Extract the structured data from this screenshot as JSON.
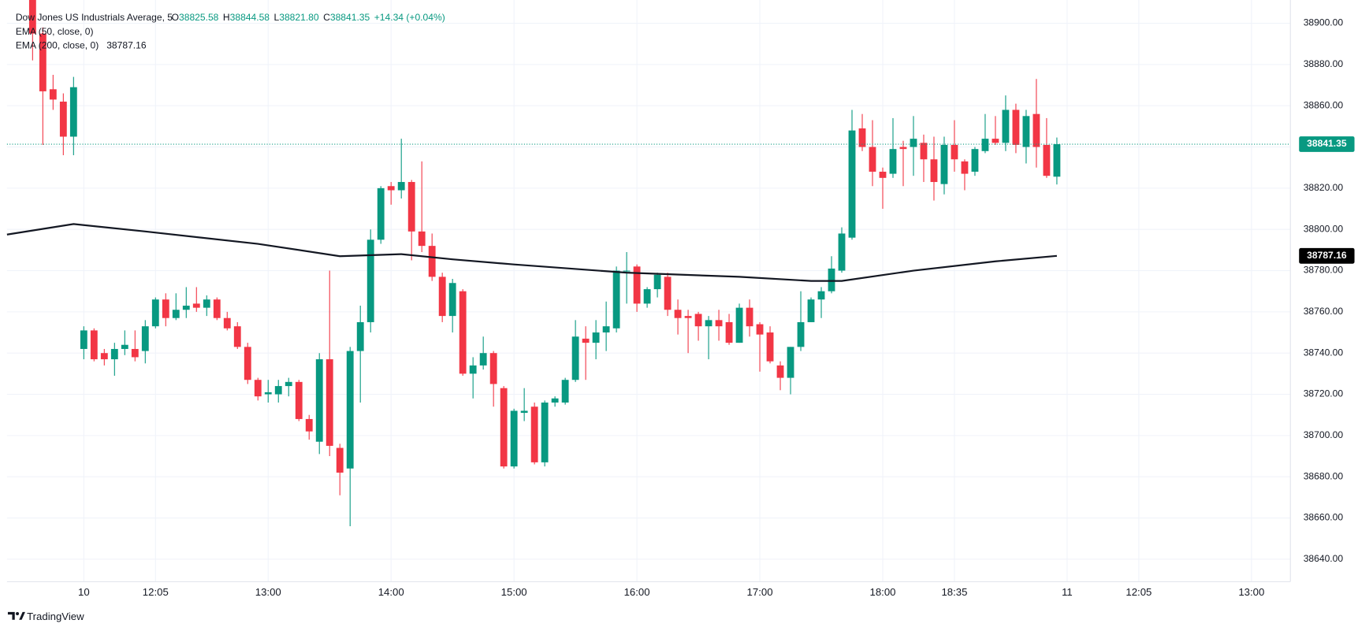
{
  "header": {
    "title": "Dow Jones US Industrials Average, 5",
    "ohlc": [
      {
        "key": "O",
        "text": "38825.58"
      },
      {
        "key": "H",
        "text": "38844.58"
      },
      {
        "key": "L",
        "text": "38821.80"
      },
      {
        "key": "C",
        "text": "38841.35"
      }
    ],
    "change": "+14.34 (+0.04%)",
    "indicators": [
      "EMA (50, close, 0)",
      "EMA (200, close, 0)"
    ]
  },
  "brand": "TradingView",
  "chart_data": {
    "type": "candlestick",
    "up_color": "#089981",
    "down_color": "#f23645",
    "open": [
      38912,
      38895,
      38868,
      38862,
      38845,
      38742,
      38751,
      38740,
      38737,
      38742,
      38742,
      38741,
      38753,
      38766,
      38757,
      38761,
      38764,
      38762,
      38766,
      38757,
      38753,
      38743,
      38727,
      38720,
      38720,
      38724,
      38726,
      38708,
      38697,
      38737,
      38694,
      38684,
      38741,
      38755,
      38795,
      38821,
      38819,
      38823,
      38799,
      38792,
      38777,
      38758,
      38770,
      38730,
      38734,
      38740,
      38723,
      38685,
      38711,
      38714,
      38687,
      38716,
      38716,
      38727,
      38747,
      38745,
      38750,
      38752,
      38780,
      38782,
      38764,
      38771,
      38777,
      38761,
      38758,
      38759,
      38753,
      38756,
      38755,
      38745,
      38762,
      38754,
      38750,
      38734,
      38728,
      38743,
      38755,
      38766,
      38770,
      38780,
      38796,
      38849,
      38840,
      38828,
      38827,
      38840,
      38840,
      38842,
      38834,
      38822,
      38841,
      38833,
      38828,
      38838,
      38844,
      38842,
      38858,
      38840,
      38856,
      38841,
      38825.58
    ],
    "high": [
      38915,
      38898,
      38875,
      38866,
      38874,
      38753,
      38752,
      38742,
      38745,
      38751,
      38751,
      38756,
      38767,
      38769,
      38769,
      38772,
      38772,
      38768,
      38767,
      38760,
      38755,
      38745,
      38728,
      38727,
      38727,
      38728,
      38727,
      38710,
      38740,
      38780,
      38696,
      38743,
      38763,
      38800,
      38821,
      38823,
      38844,
      38824,
      38833,
      38798,
      38779,
      38776,
      38771,
      38738,
      38748,
      38741,
      38724,
      38713,
      38723,
      38716,
      38717,
      38719,
      38728,
      38756,
      38753,
      38756,
      38765,
      38782,
      38789,
      38783,
      38772,
      38779,
      38779,
      38766,
      38761,
      38760,
      38758,
      38761,
      38759,
      38764,
      38766,
      38755,
      38753,
      38736,
      38743,
      38770,
      38767,
      38772,
      38787,
      38801,
      38858,
      38856,
      38853,
      38830,
      38854,
      38843,
      38855,
      38846,
      38845,
      38845,
      38853,
      38834,
      38840,
      38856,
      38855,
      38865,
      38861,
      38858,
      38873,
      38854,
      38844.58
    ],
    "low": [
      38882,
      38841,
      38858,
      38836,
      38836,
      38737,
      38736,
      38734,
      38729,
      38739,
      38736,
      38735,
      38752,
      38753,
      38756,
      38757,
      38760,
      38758,
      38756,
      38751,
      38742,
      38725,
      38717,
      38716,
      38716,
      38719,
      38707,
      38698,
      38691,
      38690,
      38671,
      38656,
      38716,
      38750,
      38793,
      38812,
      38815,
      38785,
      38789,
      38775,
      38755,
      38750,
      38729,
      38718,
      38732,
      38714,
      38684,
      38684,
      38707,
      38686,
      38685,
      38714,
      38715,
      38726,
      38727,
      38737,
      38741,
      38750,
      38764,
      38760,
      38762,
      38767,
      38758,
      38749,
      38740,
      38746,
      38737,
      38746,
      38744,
      38745,
      38748,
      38731,
      38735,
      38722,
      38720,
      38741,
      38755,
      38757,
      38769,
      38779,
      38795,
      38838,
      38821,
      38810,
      38825,
      38821,
      38826,
      38823,
      38814,
      38817,
      38828,
      38819,
      38826,
      38837,
      38841,
      38838,
      38837,
      38832,
      38830,
      38825,
      38821.8
    ],
    "close": [
      38895,
      38867,
      38863,
      38845,
      38869,
      38751,
      38737,
      38737,
      38742,
      38744,
      38738,
      38753,
      38766,
      38757,
      38761,
      38763,
      38762,
      38766,
      38757,
      38752,
      38743,
      38727,
      38719,
      38721,
      38724,
      38726,
      38708,
      38702,
      38737,
      38695,
      38682,
      38741,
      38755,
      38795,
      38820,
      38819,
      38823,
      38799,
      38792,
      38777,
      38758,
      38774,
      38730,
      38734,
      38740,
      38725,
      38685,
      38712,
      38712,
      38687,
      38716,
      38718,
      38727,
      38748,
      38745,
      38750,
      38753,
      38780,
      38780,
      38764,
      38771,
      38778,
      38761,
      38757,
      38757,
      38753,
      38756,
      38753,
      38745,
      38762,
      38753,
      38749,
      38736,
      38728,
      38743,
      38755,
      38766,
      38770,
      38781,
      38798,
      38848,
      38840,
      38828,
      38825,
      38839,
      38839,
      38844,
      38834,
      38823,
      38841,
      38834,
      38827,
      38839,
      38844,
      38842,
      38858,
      38841,
      38855,
      38840,
      38826,
      38841.35
    ],
    "ema": {
      "name": "EMA (200, close, 0)",
      "color": "#131722",
      "x": [
        -2.5,
        4,
        11,
        22,
        30,
        36,
        41,
        47,
        58,
        69,
        76,
        79,
        86,
        94,
        100
      ],
      "values": [
        38797.5,
        38802.6,
        38799,
        38793,
        38787,
        38788,
        38785.5,
        38783,
        38779,
        38777,
        38775,
        38775,
        38780,
        38784.5,
        38787.16
      ]
    },
    "ema_box_color": "#000000",
    "xlim": [
      -2.5,
      122.8
    ],
    "ylim": [
      38629.1,
      38911.3
    ],
    "xticks": [
      {
        "value": 5,
        "label": "10"
      },
      {
        "value": 12,
        "label": "12:05"
      },
      {
        "value": 23,
        "label": "13:00"
      },
      {
        "value": 35,
        "label": "14:00"
      },
      {
        "value": 47,
        "label": "15:00"
      },
      {
        "value": 59,
        "label": "16:00"
      },
      {
        "value": 71,
        "label": "17:00"
      },
      {
        "value": 83,
        "label": "18:00"
      },
      {
        "value": 90,
        "label": "18:35"
      },
      {
        "value": 101,
        "label": "11"
      },
      {
        "value": 108,
        "label": "12:05"
      },
      {
        "value": 119,
        "label": "13:00"
      }
    ],
    "yticks": [
      {
        "value": 38640,
        "label": "38640.00"
      },
      {
        "value": 38660,
        "label": "38660.00"
      },
      {
        "value": 38680,
        "label": "38680.00"
      },
      {
        "value": 38700,
        "label": "38700.00"
      },
      {
        "value": 38720,
        "label": "38720.00"
      },
      {
        "value": 38740,
        "label": "38740.00"
      },
      {
        "value": 38760,
        "label": "38760.00"
      },
      {
        "value": 38780,
        "label": "38780.00"
      },
      {
        "value": 38800,
        "label": "38800.00"
      },
      {
        "value": 38820,
        "label": "38820.00"
      },
      {
        "value": 38840,
        "label": "38840.00"
      },
      {
        "value": 38860,
        "label": "38860.00"
      },
      {
        "value": 38880,
        "label": "38880.00"
      },
      {
        "value": 38900,
        "label": "38900.00"
      }
    ],
    "grid": true
  }
}
